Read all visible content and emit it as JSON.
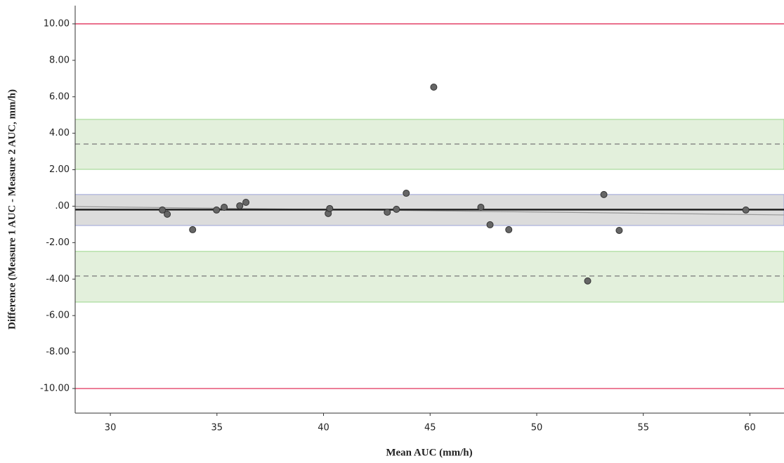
{
  "chart_data": {
    "type": "scatter",
    "x_label": "Mean AUC (mm/h)",
    "y_label": "Difference (Measure 1 AUC - Measure 2 AUC, mm/h)",
    "x": [
      32.44,
      32.67,
      33.86,
      34.98,
      35.34,
      36.07,
      36.36,
      40.22,
      40.29,
      42.99,
      43.42,
      43.88,
      45.17,
      47.38,
      47.81,
      48.69,
      52.39,
      53.15,
      53.87,
      59.81
    ],
    "values": [
      -0.21,
      -0.44,
      -1.29,
      -0.21,
      -0.06,
      0.02,
      0.21,
      -0.4,
      -0.13,
      -0.33,
      -0.17,
      0.71,
      6.53,
      -0.06,
      -1.02,
      -1.29,
      -4.1,
      0.64,
      -1.33,
      -0.21
    ],
    "color": "#666666",
    "xlim": [
      28.35,
      61.6
    ],
    "ylim": [
      -11.35,
      11.0
    ],
    "xticks": [
      30,
      35,
      40,
      45,
      50,
      55,
      60
    ],
    "yticks": [
      {
        "value": 10,
        "label": "10.00"
      },
      {
        "value": 8,
        "label": "8.00"
      },
      {
        "value": 6,
        "label": "6.00"
      },
      {
        "value": 4,
        "label": "4.00"
      },
      {
        "value": 2,
        "label": "2.00"
      },
      {
        "value": 0,
        "label": ".00"
      },
      {
        "value": -2,
        "label": "-2.00"
      },
      {
        "value": -4,
        "label": "-4.00"
      },
      {
        "value": -6,
        "label": "-6.00"
      },
      {
        "value": -8,
        "label": "-8.00"
      },
      {
        "value": -10,
        "label": "-10.00"
      }
    ],
    "bands": [
      {
        "from": 4.76,
        "to": 2.02,
        "color": "#e3f0dc",
        "edge": "#9ad58a"
      },
      {
        "from": 0.64,
        "to": -1.06,
        "color": "#dcdcdc",
        "edge": "#9ca4d8"
      },
      {
        "from": -2.48,
        "to": -5.26,
        "color": "#e3f0dc",
        "edge": "#9ad58a"
      }
    ],
    "reference_lines": [
      {
        "value": 10,
        "color": "#e0305a",
        "style": "solid"
      },
      {
        "value": -10,
        "color": "#e0305a",
        "style": "solid"
      },
      {
        "value": 3.41,
        "color": "#777777",
        "style": "dashed"
      },
      {
        "value": -3.83,
        "color": "#777777",
        "style": "dashed"
      },
      {
        "value": -0.19,
        "color": "#222222",
        "style": "thick"
      }
    ],
    "regression": {
      "x": [
        28.35,
        61.6
      ],
      "values": [
        -0.02,
        -0.48
      ],
      "color": "#999999"
    }
  }
}
